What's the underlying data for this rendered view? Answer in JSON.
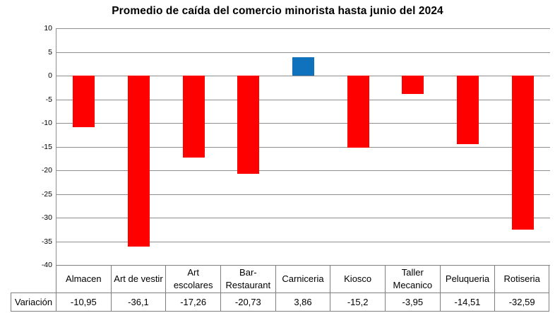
{
  "chart_data": {
    "type": "bar",
    "title": "Promedio de caída del comercio minorista hasta junio del 2024",
    "categories": [
      "Almacen",
      "Art de vestir",
      "Art escolares",
      "Bar-Restaurant",
      "Carniceria",
      "Kiosco",
      "Taller Mecanico",
      "Peluqueria",
      "Rotiseria"
    ],
    "values": [
      -10.95,
      -36.1,
      -17.26,
      -20.73,
      3.86,
      -15.2,
      -3.95,
      -14.51,
      -32.59
    ],
    "value_labels": [
      "-10,95",
      "-36,1",
      "-17,26",
      "-20,73",
      "3,86",
      "-15,2",
      "-3,95",
      "-14,51",
      "-32,59"
    ],
    "row_label": "Variación",
    "xlabel": "",
    "ylabel": "",
    "ylim": [
      -40,
      10
    ],
    "yticks": [
      10,
      5,
      0,
      -5,
      -10,
      -15,
      -20,
      -25,
      -30,
      -35,
      -40
    ],
    "grid": true,
    "legend_position": "none",
    "colors": {
      "negative_bar": "#FF0000",
      "positive_bar": "#1072BC",
      "gridline": "#8E8E8E",
      "table_border": "#7F7F7F",
      "title_text": "#000000"
    }
  }
}
